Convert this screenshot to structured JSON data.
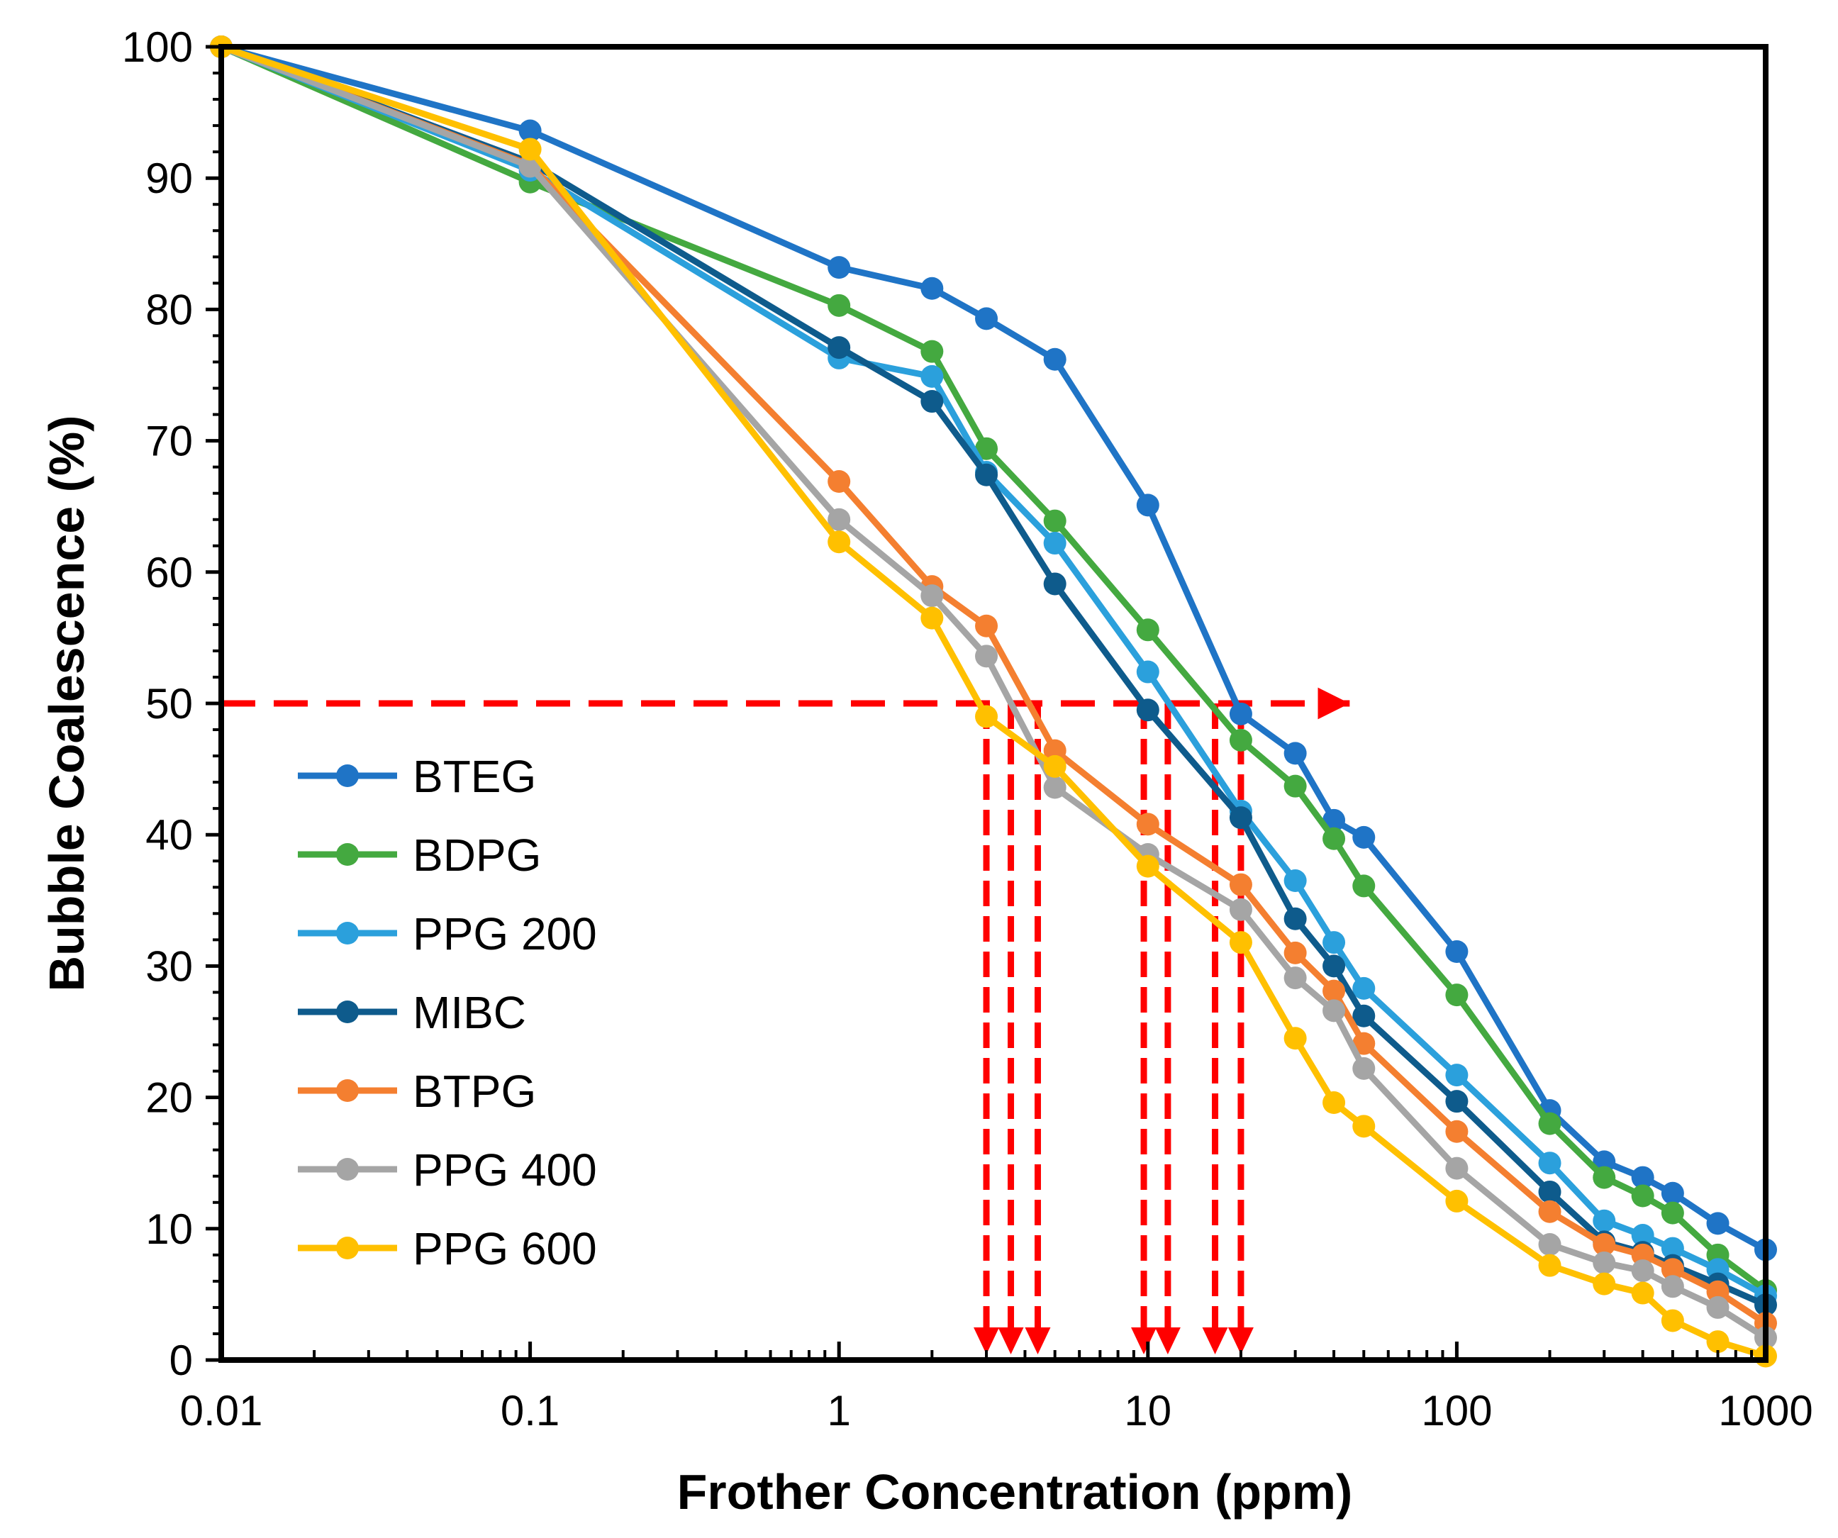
{
  "chart_data": {
    "type": "line",
    "title": "",
    "xlabel": "Frother Concentration (ppm)",
    "ylabel": "Bubble Coalescence (%)",
    "xscale": "log",
    "xlim": [
      0.01,
      1000
    ],
    "ylim": [
      0,
      100
    ],
    "xticks": [
      {
        "value": 0.01,
        "label": "0.01"
      },
      {
        "value": 0.1,
        "label": "0.1"
      },
      {
        "value": 1,
        "label": "1"
      },
      {
        "value": 10,
        "label": "10"
      },
      {
        "value": 100,
        "label": "100"
      },
      {
        "value": 1000,
        "label": "1000"
      }
    ],
    "yticks": [
      {
        "value": 0,
        "label": "0"
      },
      {
        "value": 10,
        "label": "10"
      },
      {
        "value": 20,
        "label": "20"
      },
      {
        "value": 30,
        "label": "30"
      },
      {
        "value": 40,
        "label": "40"
      },
      {
        "value": 50,
        "label": "50"
      },
      {
        "value": 60,
        "label": "60"
      },
      {
        "value": 70,
        "label": "70"
      },
      {
        "value": 80,
        "label": "80"
      },
      {
        "value": 90,
        "label": "90"
      },
      {
        "value": 100,
        "label": "100"
      }
    ],
    "legend_position": "bottom-left",
    "series": [
      {
        "name": "BTEG",
        "color": "#1f74c6",
        "x": [
          0.01,
          0.1,
          1,
          2,
          3,
          5,
          10,
          20,
          30,
          40,
          50,
          100,
          200,
          300,
          400,
          500,
          700,
          1000
        ],
        "y": [
          100,
          93.6,
          83.2,
          81.6,
          79.3,
          76.2,
          65.1,
          49.2,
          46.2,
          41.1,
          39.8,
          31.1,
          19.0,
          15.1,
          13.9,
          12.7,
          10.4,
          8.4
        ]
      },
      {
        "name": "BDPG",
        "color": "#44a940",
        "x": [
          0.01,
          0.1,
          1,
          2,
          3,
          5,
          10,
          20,
          30,
          40,
          50,
          100,
          200,
          300,
          400,
          500,
          700,
          1000
        ],
        "y": [
          100,
          89.7,
          80.3,
          76.8,
          69.4,
          63.9,
          55.6,
          47.2,
          43.7,
          39.7,
          36.1,
          27.8,
          18.0,
          13.9,
          12.5,
          11.2,
          8.0,
          5.3
        ]
      },
      {
        "name": "PPG 200",
        "color": "#2ba0dc",
        "x": [
          0.01,
          0.1,
          1,
          2,
          3,
          5,
          10,
          20,
          30,
          40,
          50,
          100,
          200,
          300,
          400,
          500,
          700,
          1000
        ],
        "y": [
          100,
          90.6,
          76.3,
          74.9,
          67.6,
          62.2,
          52.4,
          41.8,
          36.5,
          31.8,
          28.3,
          21.7,
          15.0,
          10.6,
          9.5,
          8.5,
          6.9,
          4.9
        ]
      },
      {
        "name": "MIBC",
        "color": "#0e5b8c",
        "x": [
          0.01,
          0.1,
          1,
          2,
          3,
          5,
          10,
          20,
          30,
          40,
          50,
          100,
          200,
          300,
          400,
          500,
          700,
          1000
        ],
        "y": [
          100,
          91.2,
          77.1,
          73.0,
          67.4,
          59.1,
          49.5,
          41.3,
          33.6,
          30.0,
          26.2,
          19.7,
          12.8,
          9.0,
          8.2,
          7.2,
          5.8,
          4.2
        ]
      },
      {
        "name": "BTPG",
        "color": "#f47f30",
        "x": [
          0.01,
          0.1,
          1,
          2,
          3,
          5,
          10,
          20,
          30,
          40,
          50,
          100,
          200,
          300,
          400,
          500,
          700,
          1000
        ],
        "y": [
          100,
          91.0,
          66.9,
          58.9,
          55.9,
          46.4,
          40.8,
          36.2,
          31.0,
          28.1,
          24.1,
          17.4,
          11.3,
          8.8,
          8.0,
          6.9,
          5.2,
          2.8
        ]
      },
      {
        "name": "PPG 400",
        "color": "#a5a5a5",
        "x": [
          0.01,
          0.1,
          1,
          2,
          3,
          5,
          10,
          20,
          30,
          40,
          50,
          100,
          200,
          300,
          400,
          500,
          700,
          1000
        ],
        "y": [
          100,
          90.9,
          64.0,
          58.2,
          53.6,
          43.6,
          38.5,
          34.3,
          29.1,
          26.6,
          22.2,
          14.6,
          8.8,
          7.4,
          6.8,
          5.6,
          4.0,
          1.7
        ]
      },
      {
        "name": "PPG 600",
        "color": "#ffc000",
        "x": [
          0.01,
          0.1,
          1,
          2,
          3,
          5,
          10,
          20,
          30,
          40,
          50,
          100,
          200,
          300,
          400,
          500,
          700,
          1000
        ],
        "y": [
          100,
          92.2,
          62.3,
          56.5,
          49.0,
          45.2,
          37.6,
          31.8,
          24.5,
          19.6,
          17.8,
          12.1,
          7.2,
          5.8,
          5.1,
          3.0,
          1.4,
          0.3
        ]
      }
    ],
    "annotation": {
      "type": "cmc-read-off",
      "color": "#ff0000",
      "y_level": 50,
      "x_end": 45,
      "cmc_values": [
        3.0,
        3.6,
        4.4,
        9.7,
        11.6,
        16.5,
        20.0
      ]
    }
  }
}
